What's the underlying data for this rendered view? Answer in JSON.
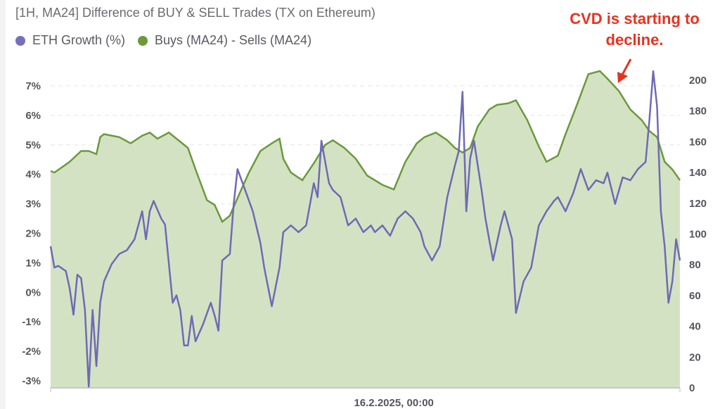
{
  "chart_data": {
    "type": "line",
    "title": "[1H, MA24] Difference of BUY & SELL Trades (TX on Ethereum)",
    "legend_placement": "top-left",
    "xlim": [
      "2025-02-12 06:00",
      "2025-02-19 03:00"
    ],
    "x_ticks": [
      {
        "x": "2025-02-16 00:00",
        "label": "16.2.2025, 00:00"
      }
    ],
    "left_axis": {
      "range": [
        -3,
        7
      ],
      "ticks": [
        "7%",
        "6%",
        "5%",
        "4%",
        "3%",
        "2%",
        "1%",
        "0%",
        "-1%",
        "-2%",
        "-3%"
      ],
      "values": [
        7,
        6,
        5,
        4,
        3,
        2,
        1,
        0,
        -1,
        -2,
        -3
      ]
    },
    "right_axis": {
      "range": [
        0,
        200
      ],
      "ticks": [
        "200",
        "180",
        "160",
        "140",
        "120",
        "100",
        "80",
        "60",
        "40",
        "20",
        "0"
      ],
      "values": [
        200,
        180,
        160,
        140,
        120,
        100,
        80,
        60,
        40,
        20,
        0
      ]
    },
    "grid": true,
    "series": [
      {
        "name": "ETH Growth (%)",
        "axis": "left",
        "color": "#6e6ab4",
        "style": "line",
        "points": [
          [
            "2025-02-12 06:00",
            1.56
          ],
          [
            "2025-02-12 07:00",
            0.84
          ],
          [
            "2025-02-12 08:00",
            0.9
          ],
          [
            "2025-02-12 10:00",
            0.72
          ],
          [
            "2025-02-12 11:00",
            0.13
          ],
          [
            "2025-02-12 12:00",
            -0.76
          ],
          [
            "2025-02-12 13:00",
            0.6
          ],
          [
            "2025-02-12 14:00",
            0.48
          ],
          [
            "2025-02-12 15:00",
            -0.6
          ],
          [
            "2025-02-12 16:00",
            -3.2
          ],
          [
            "2025-02-12 17:00",
            -0.6
          ],
          [
            "2025-02-12 18:00",
            -2.5
          ],
          [
            "2025-02-12 19:00",
            -0.35
          ],
          [
            "2025-02-12 20:00",
            0.37
          ],
          [
            "2025-02-12 22:00",
            0.96
          ],
          [
            "2025-02-13 00:00",
            1.3
          ],
          [
            "2025-02-13 02:00",
            1.43
          ],
          [
            "2025-02-13 04:00",
            1.8
          ],
          [
            "2025-02-13 06:00",
            2.75
          ],
          [
            "2025-02-13 07:00",
            1.8
          ],
          [
            "2025-02-13 08:00",
            2.75
          ],
          [
            "2025-02-13 09:00",
            3.1
          ],
          [
            "2025-02-13 11:00",
            2.5
          ],
          [
            "2025-02-13 12:00",
            2.3
          ],
          [
            "2025-02-13 14:00",
            -0.35
          ],
          [
            "2025-02-13 15:00",
            -0.1
          ],
          [
            "2025-02-13 16:00",
            -0.6
          ],
          [
            "2025-02-13 17:00",
            -1.8
          ],
          [
            "2025-02-13 18:00",
            -1.8
          ],
          [
            "2025-02-13 19:00",
            -0.8
          ],
          [
            "2025-02-13 20:00",
            -1.66
          ],
          [
            "2025-02-13 22:00",
            -1.07
          ],
          [
            "2025-02-14 00:00",
            -0.35
          ],
          [
            "2025-02-14 01:00",
            -0.78
          ],
          [
            "2025-02-14 02:00",
            -1.3
          ],
          [
            "2025-02-14 03:00",
            1.08
          ],
          [
            "2025-02-14 05:00",
            1.3
          ],
          [
            "2025-02-14 06:00",
            3.0
          ],
          [
            "2025-02-14 07:00",
            4.18
          ],
          [
            "2025-02-14 09:00",
            3.47
          ],
          [
            "2025-02-14 11:00",
            2.75
          ],
          [
            "2025-02-14 13:00",
            1.68
          ],
          [
            "2025-02-14 14:00",
            0.84
          ],
          [
            "2025-02-14 16:00",
            -0.47
          ],
          [
            "2025-02-14 18:00",
            0.84
          ],
          [
            "2025-02-14 19:00",
            2.04
          ],
          [
            "2025-02-14 21:00",
            2.27
          ],
          [
            "2025-02-14 23:00",
            2.04
          ],
          [
            "2025-02-15 01:00",
            2.27
          ],
          [
            "2025-02-15 03:00",
            3.7
          ],
          [
            "2025-02-15 04:00",
            3.23
          ],
          [
            "2025-02-15 05:00",
            5.14
          ],
          [
            "2025-02-15 07:00",
            3.7
          ],
          [
            "2025-02-15 08:00",
            3.47
          ],
          [
            "2025-02-15 10:00",
            3.23
          ],
          [
            "2025-02-15 12:00",
            2.27
          ],
          [
            "2025-02-15 14:00",
            2.5
          ],
          [
            "2025-02-15 16:00",
            2.04
          ],
          [
            "2025-02-15 18:00",
            2.27
          ],
          [
            "2025-02-15 19:00",
            2.04
          ],
          [
            "2025-02-15 21:00",
            2.27
          ],
          [
            "2025-02-15 23:00",
            1.92
          ],
          [
            "2025-02-16 01:00",
            2.5
          ],
          [
            "2025-02-16 03:00",
            2.75
          ],
          [
            "2025-02-16 05:00",
            2.5
          ],
          [
            "2025-02-16 07:00",
            2.04
          ],
          [
            "2025-02-16 08:00",
            1.56
          ],
          [
            "2025-02-16 10:00",
            1.08
          ],
          [
            "2025-02-16 12:00",
            1.56
          ],
          [
            "2025-02-16 14:00",
            3.23
          ],
          [
            "2025-02-16 16:00",
            4.3
          ],
          [
            "2025-02-16 17:00",
            4.78
          ],
          [
            "2025-02-16 18:00",
            6.8
          ],
          [
            "2025-02-16 19:00",
            2.75
          ],
          [
            "2025-02-16 20:00",
            4.54
          ],
          [
            "2025-02-16 21:00",
            5.14
          ],
          [
            "2025-02-16 23:00",
            3.47
          ],
          [
            "2025-02-17 00:00",
            2.5
          ],
          [
            "2025-02-17 02:00",
            1.08
          ],
          [
            "2025-02-17 04:00",
            2.27
          ],
          [
            "2025-02-17 05:00",
            2.75
          ],
          [
            "2025-02-17 07:00",
            1.8
          ],
          [
            "2025-02-17 08:00",
            -0.7
          ],
          [
            "2025-02-17 10:00",
            0.37
          ],
          [
            "2025-02-17 12:00",
            0.84
          ],
          [
            "2025-02-17 14:00",
            2.27
          ],
          [
            "2025-02-17 16:00",
            2.75
          ],
          [
            "2025-02-17 18:00",
            3.1
          ],
          [
            "2025-02-17 19:00",
            3.23
          ],
          [
            "2025-02-17 21:00",
            2.75
          ],
          [
            "2025-02-17 23:00",
            3.35
          ],
          [
            "2025-02-18 01:00",
            4.18
          ],
          [
            "2025-02-18 03:00",
            3.47
          ],
          [
            "2025-02-18 05:00",
            3.8
          ],
          [
            "2025-02-18 07:00",
            3.7
          ],
          [
            "2025-02-18 08:00",
            4.06
          ],
          [
            "2025-02-18 10:00",
            3.0
          ],
          [
            "2025-02-18 12:00",
            3.9
          ],
          [
            "2025-02-18 14:00",
            3.8
          ],
          [
            "2025-02-18 16:00",
            4.18
          ],
          [
            "2025-02-18 18:00",
            4.42
          ],
          [
            "2025-02-18 19:00",
            5.85
          ],
          [
            "2025-02-18 20:00",
            7.5
          ],
          [
            "2025-02-18 21:00",
            6.3
          ],
          [
            "2025-02-18 22:00",
            2.75
          ],
          [
            "2025-02-18 23:00",
            1.56
          ],
          [
            "2025-02-19 00:00",
            -0.35
          ],
          [
            "2025-02-19 01:00",
            0.37
          ],
          [
            "2025-02-19 02:00",
            1.8
          ],
          [
            "2025-02-19 03:00",
            1.08
          ]
        ]
      },
      {
        "name": "Buys (MA24) - Sells (MA24)",
        "axis": "right",
        "color": "#6a9a3a",
        "fill": "#d4e2c4",
        "style": "area",
        "points": [
          [
            "2025-02-12 06:00",
            141
          ],
          [
            "2025-02-12 07:00",
            140
          ],
          [
            "2025-02-12 11:00",
            147
          ],
          [
            "2025-02-12 14:00",
            154
          ],
          [
            "2025-02-12 16:00",
            154
          ],
          [
            "2025-02-12 18:00",
            152
          ],
          [
            "2025-02-12 19:00",
            163
          ],
          [
            "2025-02-12 20:00",
            165
          ],
          [
            "2025-02-13 00:00",
            163
          ],
          [
            "2025-02-13 03:00",
            159
          ],
          [
            "2025-02-13 06:00",
            164
          ],
          [
            "2025-02-13 08:00",
            166
          ],
          [
            "2025-02-13 10:00",
            162
          ],
          [
            "2025-02-13 13:00",
            166
          ],
          [
            "2025-02-13 15:00",
            162
          ],
          [
            "2025-02-13 18:00",
            156
          ],
          [
            "2025-02-13 20:00",
            142
          ],
          [
            "2025-02-13 23:00",
            122
          ],
          [
            "2025-02-14 01:00",
            119
          ],
          [
            "2025-02-14 03:00",
            108
          ],
          [
            "2025-02-14 05:00",
            112
          ],
          [
            "2025-02-14 08:00",
            129
          ],
          [
            "2025-02-14 10:00",
            140
          ],
          [
            "2025-02-14 13:00",
            154
          ],
          [
            "2025-02-14 16:00",
            159
          ],
          [
            "2025-02-14 18:00",
            162
          ],
          [
            "2025-02-14 19:00",
            149
          ],
          [
            "2025-02-14 21:00",
            140
          ],
          [
            "2025-02-15 00:00",
            135
          ],
          [
            "2025-02-15 03:00",
            146
          ],
          [
            "2025-02-15 06:00",
            158
          ],
          [
            "2025-02-15 08:00",
            161
          ],
          [
            "2025-02-15 11:00",
            156
          ],
          [
            "2025-02-15 14:00",
            149
          ],
          [
            "2025-02-15 17:00",
            138
          ],
          [
            "2025-02-15 19:00",
            135
          ],
          [
            "2025-02-15 21:00",
            132
          ],
          [
            "2025-02-16 00:00",
            129
          ],
          [
            "2025-02-16 03:00",
            147
          ],
          [
            "2025-02-16 06:00",
            159
          ],
          [
            "2025-02-16 08:00",
            163
          ],
          [
            "2025-02-16 11:00",
            166
          ],
          [
            "2025-02-16 14:00",
            161
          ],
          [
            "2025-02-16 16:00",
            156
          ],
          [
            "2025-02-16 18:00",
            153
          ],
          [
            "2025-02-16 20:00",
            156
          ],
          [
            "2025-02-16 22:00",
            170
          ],
          [
            "2025-02-17 01:00",
            181
          ],
          [
            "2025-02-17 03:00",
            184
          ],
          [
            "2025-02-17 06:00",
            185
          ],
          [
            "2025-02-17 08:00",
            187
          ],
          [
            "2025-02-17 11:00",
            174
          ],
          [
            "2025-02-17 14:00",
            157
          ],
          [
            "2025-02-17 16:00",
            147
          ],
          [
            "2025-02-17 19:00",
            151
          ],
          [
            "2025-02-17 21:00",
            165
          ],
          [
            "2025-02-18 00:00",
            184
          ],
          [
            "2025-02-18 03:00",
            204
          ],
          [
            "2025-02-18 06:00",
            206
          ],
          [
            "2025-02-18 08:00",
            201
          ],
          [
            "2025-02-18 11:00",
            193
          ],
          [
            "2025-02-18 14:00",
            181
          ],
          [
            "2025-02-18 17:00",
            174
          ],
          [
            "2025-02-18 19:00",
            167
          ],
          [
            "2025-02-18 21:00",
            163
          ],
          [
            "2025-02-18 23:00",
            147
          ],
          [
            "2025-02-19 01:00",
            142
          ],
          [
            "2025-02-19 03:00",
            135
          ]
        ]
      }
    ],
    "annotations": [
      {
        "text_line1": "CVD is starting to",
        "text_line2": "decline.",
        "color": "#e8321f",
        "arrow": true
      }
    ]
  }
}
